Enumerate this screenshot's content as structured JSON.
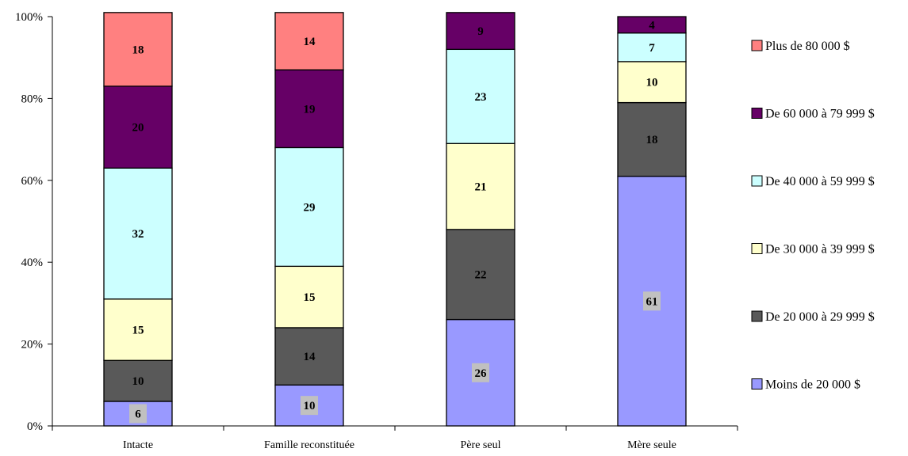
{
  "chart_data": {
    "type": "bar",
    "stacked": true,
    "normalized": true,
    "categories": [
      "Intacte",
      "Famille reconstituée",
      "Père seul",
      "Mère seule"
    ],
    "series": [
      {
        "name": "Moins de 20 000 $",
        "color": "#9999ff",
        "values": [
          6,
          10,
          26,
          61
        ]
      },
      {
        "name": "De 20 000 à 29 999 $",
        "color": "#595959",
        "values": [
          10,
          14,
          22,
          18
        ]
      },
      {
        "name": "De 30 000 à 39 999 $",
        "color": "#ffffcc",
        "values": [
          15,
          15,
          21,
          10
        ]
      },
      {
        "name": "De 40 000 à 59 999 $",
        "color": "#ccffff",
        "values": [
          32,
          29,
          23,
          7
        ]
      },
      {
        "name": "De 60 000 à 79 999 $",
        "color": "#660066",
        "values": [
          20,
          19,
          9,
          4
        ]
      },
      {
        "name": "Plus de 80 000 $",
        "color": "#ff8080",
        "values": [
          18,
          14,
          0,
          0
        ]
      }
    ],
    "yticks": [
      "0%",
      "20%",
      "40%",
      "60%",
      "80%",
      "100%"
    ],
    "ylim": [
      0,
      100
    ],
    "grid": false,
    "legend_position": "right",
    "highlight_label_bg": "#c0c0c0"
  }
}
